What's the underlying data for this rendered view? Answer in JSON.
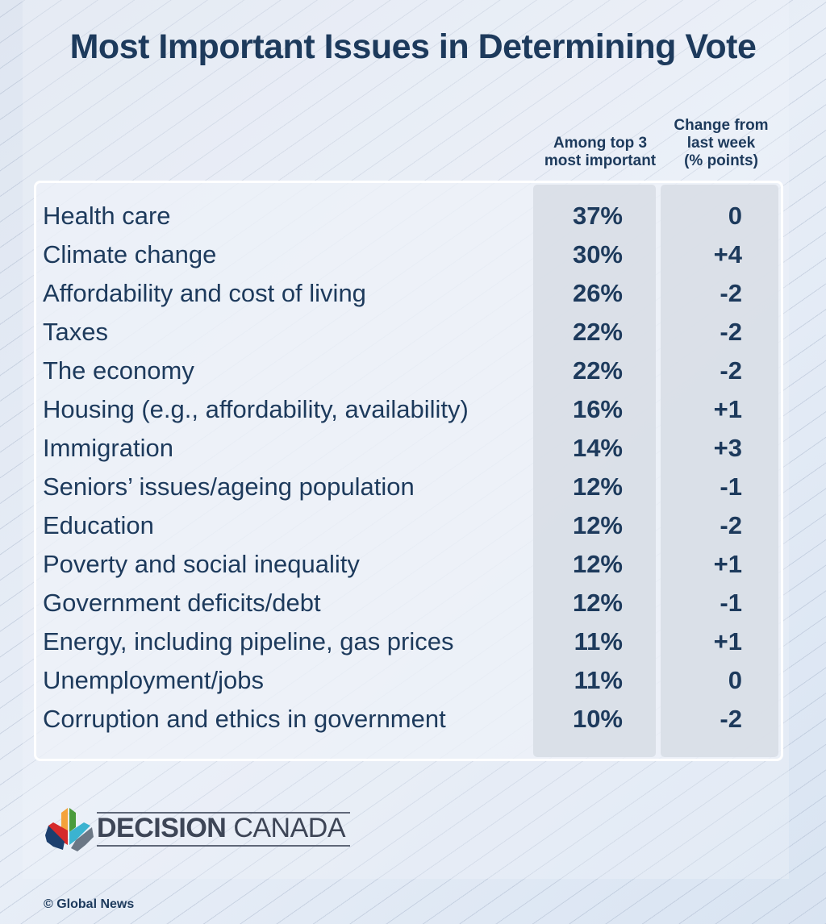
{
  "chart_data": {
    "type": "table",
    "title": "Most Important Issues in Determining Vote",
    "columns": [
      "Among top 3 most important",
      "Change from last week (% points)"
    ],
    "rows": [
      {
        "issue": "Health care",
        "top3": "37%",
        "change": "0"
      },
      {
        "issue": "Climate change",
        "top3": "30%",
        "change": "+4"
      },
      {
        "issue": "Affordability and cost of living",
        "top3": "26%",
        "change": "-2"
      },
      {
        "issue": "Taxes",
        "top3": "22%",
        "change": "-2"
      },
      {
        "issue": "The economy",
        "top3": "22%",
        "change": "-2"
      },
      {
        "issue": "Housing (e.g., affordability, availability)",
        "top3": "16%",
        "change": "+1"
      },
      {
        "issue": "Immigration",
        "top3": "14%",
        "change": "+3"
      },
      {
        "issue": "Seniors’ issues/ageing population",
        "top3": "12%",
        "change": "-1"
      },
      {
        "issue": "Education",
        "top3": "12%",
        "change": "-2"
      },
      {
        "issue": "Poverty and social inequality",
        "top3": "12%",
        "change": "+1"
      },
      {
        "issue": "Government deficits/debt",
        "top3": "12%",
        "change": "-1"
      },
      {
        "issue": "Energy, including pipeline, gas prices",
        "top3": "11%",
        "change": "+1"
      },
      {
        "issue": "Unemployment/jobs",
        "top3": "11%",
        "change": "0"
      },
      {
        "issue": "Corruption and ethics in government",
        "top3": "10%",
        "change": "-2"
      }
    ]
  },
  "headers": {
    "col1_line1": "Among top 3",
    "col1_line2": "most important",
    "col2_line1": "Change from",
    "col2_line2": "last week",
    "col2_line3": "(% points)"
  },
  "logo": {
    "bold": "DECISION",
    "light": "CANADA"
  },
  "credit": "© Global News",
  "colors": {
    "text": "#1d3a5c",
    "orange": "#f4a23a",
    "green": "#4a9c3c",
    "red": "#d62a2a",
    "navy": "#1c3f6e",
    "cyan": "#3bb3d0",
    "gray": "#6b7785"
  }
}
